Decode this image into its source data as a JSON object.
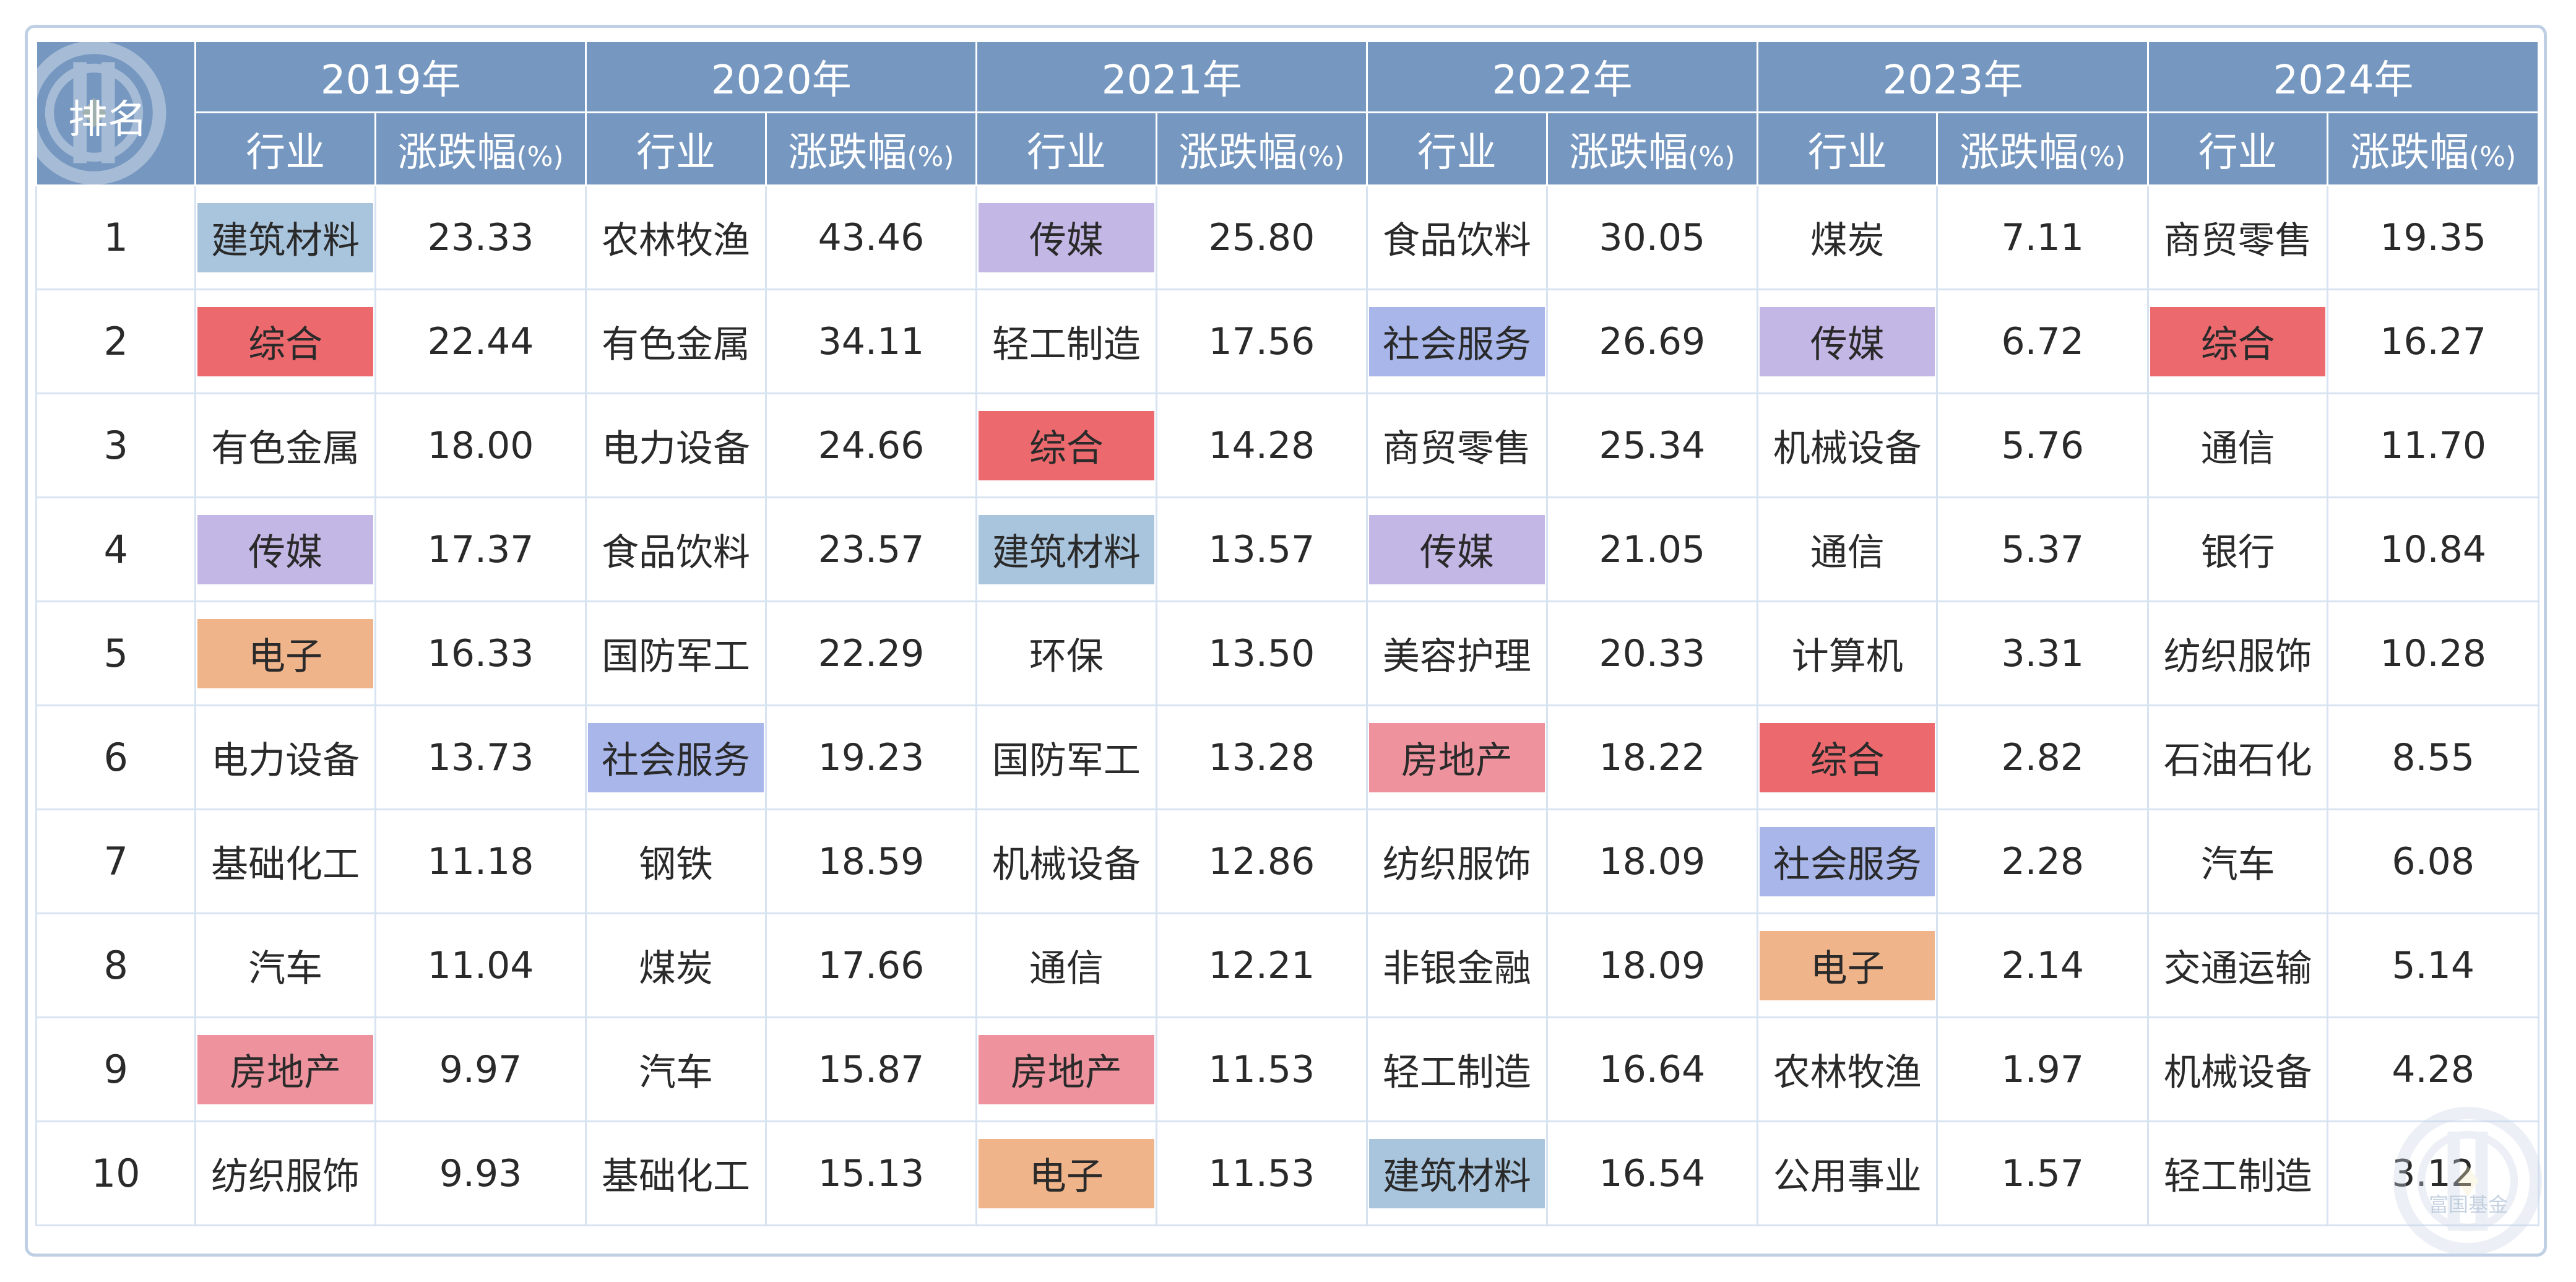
{
  "table": {
    "rank_header": "排名",
    "industry_label": "行业",
    "change_label": "涨跌幅",
    "change_unit": "(%)",
    "years": [
      "2019年",
      "2020年",
      "2021年",
      "2022年",
      "2023年",
      "2024年"
    ],
    "rows": [
      {
        "rank": "1",
        "cells": [
          {
            "ind": "建筑材料",
            "val": "23.33",
            "hl": "#a9c5de"
          },
          {
            "ind": "农林牧渔",
            "val": "43.46",
            "hl": ""
          },
          {
            "ind": "传媒",
            "val": "25.80",
            "hl": "#c3b7e6"
          },
          {
            "ind": "食品饮料",
            "val": "30.05",
            "hl": ""
          },
          {
            "ind": "煤炭",
            "val": "7.11",
            "hl": ""
          },
          {
            "ind": "商贸零售",
            "val": "19.35",
            "hl": ""
          }
        ]
      },
      {
        "rank": "2",
        "cells": [
          {
            "ind": "综合",
            "val": "22.44",
            "hl": "#ec6a6e"
          },
          {
            "ind": "有色金属",
            "val": "34.11",
            "hl": ""
          },
          {
            "ind": "轻工制造",
            "val": "17.56",
            "hl": ""
          },
          {
            "ind": "社会服务",
            "val": "26.69",
            "hl": "#a8b6ea"
          },
          {
            "ind": "传媒",
            "val": "6.72",
            "hl": "#c3b7e6"
          },
          {
            "ind": "综合",
            "val": "16.27",
            "hl": "#ec6a6e"
          }
        ]
      },
      {
        "rank": "3",
        "cells": [
          {
            "ind": "有色金属",
            "val": "18.00",
            "hl": ""
          },
          {
            "ind": "电力设备",
            "val": "24.66",
            "hl": ""
          },
          {
            "ind": "综合",
            "val": "14.28",
            "hl": "#ec6a6e"
          },
          {
            "ind": "商贸零售",
            "val": "25.34",
            "hl": ""
          },
          {
            "ind": "机械设备",
            "val": "5.76",
            "hl": ""
          },
          {
            "ind": "通信",
            "val": "11.70",
            "hl": ""
          }
        ]
      },
      {
        "rank": "4",
        "cells": [
          {
            "ind": "传媒",
            "val": "17.37",
            "hl": "#c3b7e6"
          },
          {
            "ind": "食品饮料",
            "val": "23.57",
            "hl": ""
          },
          {
            "ind": "建筑材料",
            "val": "13.57",
            "hl": "#a9c5de"
          },
          {
            "ind": "传媒",
            "val": "21.05",
            "hl": "#c3b7e6"
          },
          {
            "ind": "通信",
            "val": "5.37",
            "hl": ""
          },
          {
            "ind": "银行",
            "val": "10.84",
            "hl": ""
          }
        ]
      },
      {
        "rank": "5",
        "cells": [
          {
            "ind": "电子",
            "val": "16.33",
            "hl": "#f0b48b"
          },
          {
            "ind": "国防军工",
            "val": "22.29",
            "hl": ""
          },
          {
            "ind": "环保",
            "val": "13.50",
            "hl": ""
          },
          {
            "ind": "美容护理",
            "val": "20.33",
            "hl": ""
          },
          {
            "ind": "计算机",
            "val": "3.31",
            "hl": ""
          },
          {
            "ind": "纺织服饰",
            "val": "10.28",
            "hl": ""
          }
        ]
      },
      {
        "rank": "6",
        "cells": [
          {
            "ind": "电力设备",
            "val": "13.73",
            "hl": ""
          },
          {
            "ind": "社会服务",
            "val": "19.23",
            "hl": "#a8b6ea"
          },
          {
            "ind": "国防军工",
            "val": "13.28",
            "hl": ""
          },
          {
            "ind": "房地产",
            "val": "18.22",
            "hl": "#ee939d"
          },
          {
            "ind": "综合",
            "val": "2.82",
            "hl": "#ec6a6e"
          },
          {
            "ind": "石油石化",
            "val": "8.55",
            "hl": ""
          }
        ]
      },
      {
        "rank": "7",
        "cells": [
          {
            "ind": "基础化工",
            "val": "11.18",
            "hl": ""
          },
          {
            "ind": "钢铁",
            "val": "18.59",
            "hl": ""
          },
          {
            "ind": "机械设备",
            "val": "12.86",
            "hl": ""
          },
          {
            "ind": "纺织服饰",
            "val": "18.09",
            "hl": ""
          },
          {
            "ind": "社会服务",
            "val": "2.28",
            "hl": "#a8b6ea"
          },
          {
            "ind": "汽车",
            "val": "6.08",
            "hl": ""
          }
        ]
      },
      {
        "rank": "8",
        "cells": [
          {
            "ind": "汽车",
            "val": "11.04",
            "hl": ""
          },
          {
            "ind": "煤炭",
            "val": "17.66",
            "hl": ""
          },
          {
            "ind": "通信",
            "val": "12.21",
            "hl": ""
          },
          {
            "ind": "非银金融",
            "val": "18.09",
            "hl": ""
          },
          {
            "ind": "电子",
            "val": "2.14",
            "hl": "#f0b48b"
          },
          {
            "ind": "交通运输",
            "val": "5.14",
            "hl": ""
          }
        ]
      },
      {
        "rank": "9",
        "cells": [
          {
            "ind": "房地产",
            "val": "9.97",
            "hl": "#ee939d"
          },
          {
            "ind": "汽车",
            "val": "15.87",
            "hl": ""
          },
          {
            "ind": "房地产",
            "val": "11.53",
            "hl": "#ee939d"
          },
          {
            "ind": "轻工制造",
            "val": "16.64",
            "hl": ""
          },
          {
            "ind": "农林牧渔",
            "val": "1.97",
            "hl": ""
          },
          {
            "ind": "机械设备",
            "val": "4.28",
            "hl": ""
          }
        ]
      },
      {
        "rank": "10",
        "cells": [
          {
            "ind": "纺织服饰",
            "val": "9.93",
            "hl": ""
          },
          {
            "ind": "基础化工",
            "val": "15.13",
            "hl": ""
          },
          {
            "ind": "电子",
            "val": "11.53",
            "hl": "#f0b48b"
          },
          {
            "ind": "建筑材料",
            "val": "16.54",
            "hl": "#a9c5de"
          },
          {
            "ind": "公用事业",
            "val": "1.57",
            "hl": ""
          },
          {
            "ind": "轻工制造",
            "val": "3.12",
            "hl": ""
          }
        ]
      }
    ]
  },
  "colors": {
    "header_bg": "#7597c0",
    "grid_line": "#d7e3f1",
    "frame_border": "#bfd0e4"
  },
  "icons": {
    "header_logo": "coin-logo-icon",
    "watermark": "coin-logo-icon"
  },
  "watermark": {
    "text": "富国基金"
  }
}
